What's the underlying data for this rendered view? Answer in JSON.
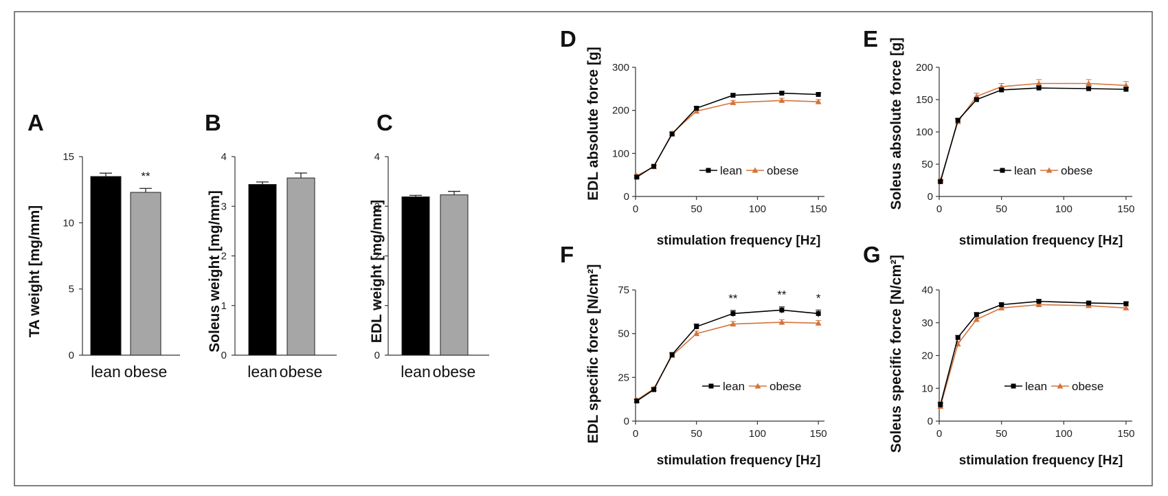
{
  "colors": {
    "lean": "#000000",
    "obese": "#d4733a",
    "lean_bar": "#000000",
    "obese_bar": "#a6a6a6",
    "frame": "#555555"
  },
  "chart_data": [
    {
      "panel": "A",
      "type": "bar",
      "categories": [
        "lean",
        "obese"
      ],
      "values": [
        13.5,
        12.3
      ],
      "errors": [
        0.25,
        0.3
      ],
      "ylabel": "TA weight [mg/mm]",
      "ylim": [
        0,
        15
      ],
      "yticks": [
        0,
        5,
        10,
        15
      ],
      "yticklabels": [
        "0",
        "5",
        "10",
        "15"
      ],
      "significance": [
        "",
        "**"
      ]
    },
    {
      "panel": "B",
      "type": "bar",
      "categories": [
        "lean",
        "obese"
      ],
      "values": [
        3.44,
        3.57
      ],
      "errors": [
        0.05,
        0.1
      ],
      "ylabel": "Soleus weight [mg/mm]",
      "ylim": [
        0,
        4
      ],
      "yticks": [
        0,
        1,
        2,
        3,
        4
      ],
      "yticklabels": [
        "0",
        "1",
        "2",
        "3",
        "4"
      ],
      "significance": [
        "",
        ""
      ]
    },
    {
      "panel": "C",
      "type": "bar",
      "categories": [
        "lean",
        "obese"
      ],
      "values": [
        3.19,
        3.23
      ],
      "errors": [
        0.03,
        0.07
      ],
      "ylabel": "EDL weight [mg/mm]",
      "ylim": [
        0,
        4
      ],
      "yticks": [
        0,
        1,
        2,
        3,
        4
      ],
      "yticklabels": [
        "0",
        "1",
        "2",
        "3",
        "4"
      ],
      "significance": [
        "",
        ""
      ]
    },
    {
      "panel": "D",
      "type": "line",
      "x": [
        1,
        15,
        30,
        50,
        80,
        120,
        150
      ],
      "series": [
        {
          "name": "lean",
          "values": [
            45,
            70,
            145,
            205,
            235,
            240,
            237
          ],
          "errors": [
            3,
            3,
            4,
            4,
            4,
            4,
            4
          ]
        },
        {
          "name": "obese",
          "values": [
            48,
            69,
            147,
            198,
            218,
            223,
            220
          ],
          "errors": [
            3,
            3,
            4,
            4,
            5,
            5,
            5
          ]
        }
      ],
      "ylabel": "EDL absolute force [g]",
      "xlabel": "stimulation frequency [Hz]",
      "xlim": [
        0,
        155
      ],
      "ylim": [
        0,
        300
      ],
      "xticks": [
        0,
        50,
        100,
        150
      ],
      "xticklabels": [
        "0",
        "50",
        "100",
        "150"
      ],
      "yticks": [
        0,
        100,
        200,
        300
      ],
      "yticklabels": [
        "0",
        "100",
        "200",
        "300"
      ],
      "legend": [
        "lean",
        "obese"
      ],
      "significance": []
    },
    {
      "panel": "E",
      "type": "line",
      "x": [
        1,
        15,
        30,
        50,
        80,
        120,
        150
      ],
      "series": [
        {
          "name": "lean",
          "values": [
            23,
            118,
            150,
            165,
            168,
            167,
            166
          ],
          "errors": [
            2,
            3,
            3,
            3,
            3,
            3,
            3
          ]
        },
        {
          "name": "obese",
          "values": [
            25,
            116,
            155,
            170,
            175,
            175,
            172
          ],
          "errors": [
            2,
            4,
            5,
            5,
            6,
            6,
            6
          ]
        }
      ],
      "ylabel": "Soleus absolute force [g]",
      "xlabel": "stimulation frequency [Hz]",
      "xlim": [
        0,
        155
      ],
      "ylim": [
        0,
        200
      ],
      "xticks": [
        0,
        50,
        100,
        150
      ],
      "xticklabels": [
        "0",
        "50",
        "100",
        "150"
      ],
      "yticks": [
        0,
        50,
        100,
        150,
        200
      ],
      "yticklabels": [
        "0",
        "50",
        "100",
        "150",
        "200"
      ],
      "legend": [
        "lean",
        "obese"
      ],
      "significance": []
    },
    {
      "panel": "F",
      "type": "line",
      "x": [
        1,
        15,
        30,
        50,
        80,
        120,
        150
      ],
      "series": [
        {
          "name": "lean",
          "values": [
            11.5,
            18,
            38,
            54,
            61.5,
            63.5,
            61.5
          ],
          "errors": [
            0.8,
            1,
            1.2,
            1.5,
            1.8,
            1.8,
            2
          ]
        },
        {
          "name": "obese",
          "values": [
            12,
            18.5,
            37.5,
            50,
            55.5,
            56.5,
            56
          ],
          "errors": [
            0.8,
            1,
            1.2,
            1.5,
            1.5,
            1.5,
            1.5
          ]
        }
      ],
      "ylabel": "EDL specific force [N/cm²]",
      "xlabel": "stimulation frequency [Hz]",
      "xlim": [
        0,
        155
      ],
      "ylim": [
        0,
        75
      ],
      "xticks": [
        0,
        50,
        100,
        150
      ],
      "xticklabels": [
        "0",
        "50",
        "100",
        "150"
      ],
      "yticks": [
        0,
        25,
        50,
        75
      ],
      "yticklabels": [
        "0",
        "25",
        "50",
        "75"
      ],
      "legend": [
        "lean",
        "obese"
      ],
      "significance": [
        {
          "x": 80,
          "label": "**"
        },
        {
          "x": 120,
          "label": "**"
        },
        {
          "x": 150,
          "label": "*"
        }
      ]
    },
    {
      "panel": "G",
      "type": "line",
      "x": [
        1,
        15,
        30,
        50,
        80,
        120,
        150
      ],
      "series": [
        {
          "name": "lean",
          "values": [
            5,
            25.5,
            32.5,
            35.5,
            36.5,
            36,
            35.8
          ],
          "errors": [
            0.8,
            0.6,
            0.5,
            0.5,
            0.5,
            0.5,
            0.5
          ]
        },
        {
          "name": "obese",
          "values": [
            4.5,
            23.5,
            31,
            34.5,
            35.5,
            35.2,
            34.5
          ],
          "errors": [
            0.8,
            0.8,
            0.6,
            0.6,
            0.6,
            0.6,
            0.6
          ]
        }
      ],
      "ylabel": "Soleus specific force [N/cm²]",
      "xlabel": "stimulation frequency [Hz]",
      "xlim": [
        0,
        155
      ],
      "ylim": [
        0,
        40
      ],
      "xticks": [
        0,
        50,
        100,
        150
      ],
      "xticklabels": [
        "0",
        "50",
        "100",
        "150"
      ],
      "yticks": [
        0,
        10,
        20,
        30,
        40
      ],
      "yticklabels": [
        "0",
        "10",
        "20",
        "30",
        "40"
      ],
      "legend": [
        "lean",
        "obese"
      ],
      "significance": []
    }
  ]
}
